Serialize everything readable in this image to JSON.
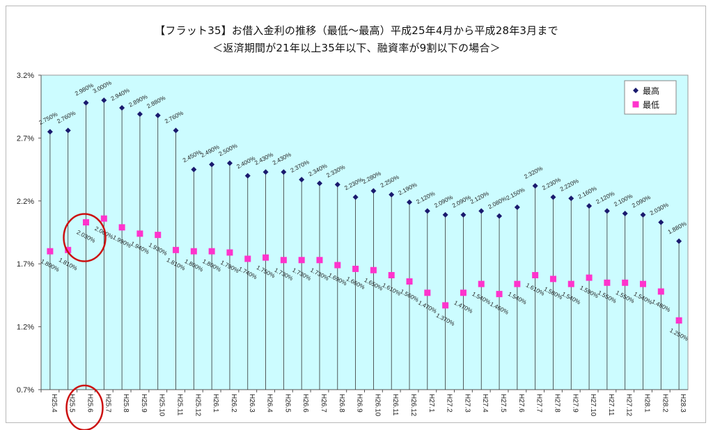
{
  "chart_data": {
    "type": "scatter",
    "title": "【フラット35】お借入金利の推移（最低～最高）平成25年4月から平成28年3月まで",
    "subtitle": "＜返済期間が21年以上35年以下、融資率が9割以下の場合＞",
    "categories": [
      "H25.4",
      "H25.5",
      "H25.6",
      "H25.7",
      "H25.8",
      "H25.9",
      "H25.10",
      "H25.11",
      "H25.12",
      "H26.1",
      "H26.2",
      "H26.3",
      "H26.4",
      "H26.5",
      "H26.6",
      "H26.7",
      "H26.8",
      "H26.9",
      "H26.10",
      "H26.11",
      "H26.12",
      "H27.1",
      "H27.2",
      "H27.3",
      "H27.4",
      "H27.5",
      "H27.6",
      "H27.7",
      "H27.8",
      "H27.9",
      "H27.10",
      "H27.11",
      "H27.12",
      "H28.1",
      "H28.2",
      "H28.3"
    ],
    "series": [
      {
        "name": "最高",
        "color": "#1a1a6e",
        "marker": "diamond",
        "values": [
          2.75,
          2.76,
          2.98,
          3.0,
          2.94,
          2.89,
          2.88,
          2.76,
          2.45,
          2.49,
          2.5,
          2.4,
          2.43,
          2.43,
          2.37,
          2.34,
          2.33,
          2.23,
          2.28,
          2.25,
          2.19,
          2.12,
          2.09,
          2.09,
          2.12,
          2.08,
          2.15,
          2.32,
          2.23,
          2.22,
          2.16,
          2.12,
          2.1,
          2.09,
          2.03,
          1.88
        ],
        "labels": [
          "2.750%",
          "2.760%",
          "2.980%",
          "3.000%",
          "2.940%",
          "2.890%",
          "2.880%",
          "2.760%",
          "2.450%",
          "2.490%",
          "2.500%",
          "2.400%",
          "2.430%",
          "2.430%",
          "2.370%",
          "2.340%",
          "2.330%",
          "2.230%",
          "2.280%",
          "2.250%",
          "2.190%",
          "2.120%",
          "2.090%",
          "2.090%",
          "2.120%",
          "2.080%",
          "2.150%",
          "2.320%",
          "2.230%",
          "2.220%",
          "2.160%",
          "2.120%",
          "2.100%",
          "2.090%",
          "2.030%",
          "1.880%"
        ]
      },
      {
        "name": "最低",
        "color": "#ff33cc",
        "marker": "square",
        "values": [
          1.8,
          1.81,
          2.03,
          2.06,
          1.99,
          1.94,
          1.93,
          1.81,
          1.8,
          1.8,
          1.79,
          1.74,
          1.75,
          1.73,
          1.73,
          1.73,
          1.69,
          1.66,
          1.65,
          1.61,
          1.56,
          1.47,
          1.37,
          1.47,
          1.54,
          1.46,
          1.54,
          1.61,
          1.58,
          1.54,
          1.59,
          1.55,
          1.55,
          1.54,
          1.48,
          1.25
        ],
        "labels": [
          "1.800%",
          "1.810%",
          "2.030%",
          "2.060%",
          "1.990%",
          "1.940%",
          "1.930%",
          "1.810%",
          "1.800%",
          "1.800%",
          "1.790%",
          "1.740%",
          "1.750%",
          "1.730%",
          "1.730%",
          "1.730%",
          "1.690%",
          "1.660%",
          "1.650%",
          "1.610%",
          "1.560%",
          "1.470%",
          "1.370%",
          "1.470%",
          "1.540%",
          "1.460%",
          "1.540%",
          "1.610%",
          "1.580%",
          "1.540%",
          "1.590%",
          "1.550%",
          "1.550%",
          "1.540%",
          "1.480%",
          "1.250%"
        ]
      }
    ],
    "ylim": [
      0.7,
      3.2
    ],
    "yticks": [
      "3.2%",
      "2.7%",
      "2.2%",
      "1.7%",
      "1.2%",
      "0.7%"
    ],
    "ytick_values": [
      3.2,
      2.7,
      2.2,
      1.7,
      1.2,
      0.7
    ],
    "grid": false,
    "legend_position": "top-right",
    "plot_background": "#ccfcff",
    "connector_color": "#333333",
    "highlight_color": "#cc1111",
    "highlight_circle_targets": [
      "H25.6 low value label",
      "H25.6 x-axis tick label"
    ]
  }
}
